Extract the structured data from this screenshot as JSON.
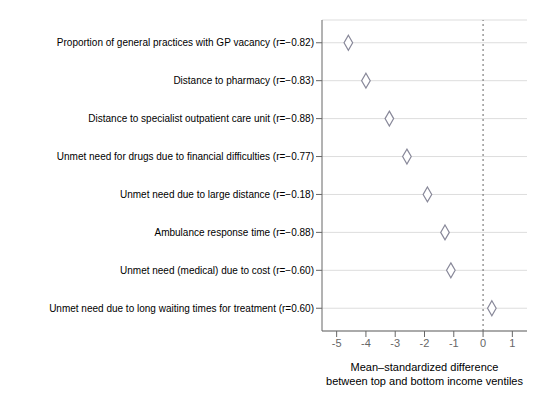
{
  "chart_data": {
    "type": "scatter",
    "orientation": "horizontal",
    "categories": [
      "Proportion of general practices with GP vacancy (r=−0.82)",
      "Distance to pharmacy (r=−0.83)",
      "Distance to specialist outpatient care unit (r=−0.88)",
      "Unmet need for drugs due to financial difficulties (r=−0.77)",
      "Unmet need due to large distance (r=−0.18)",
      "Ambulance response time (r=−0.88)",
      "Unmet need (medical) due to cost (r=−0.60)",
      "Unmet need due to long waiting times for treatment (r=0.60)"
    ],
    "values": [
      -4.6,
      -4.0,
      -3.2,
      -2.6,
      -1.9,
      -1.3,
      -1.1,
      0.3
    ],
    "xlabel": [
      "Mean–standardized difference",
      "between top and bottom income ventiles"
    ],
    "xlim": [
      -5.5,
      1.5
    ],
    "xticks": [
      -5,
      -4,
      -3,
      -2,
      -1,
      0,
      1
    ],
    "reference_line": {
      "x": 0,
      "line_style": "dotted"
    },
    "color": "#888899",
    "marker": "diamond",
    "grid": true
  }
}
